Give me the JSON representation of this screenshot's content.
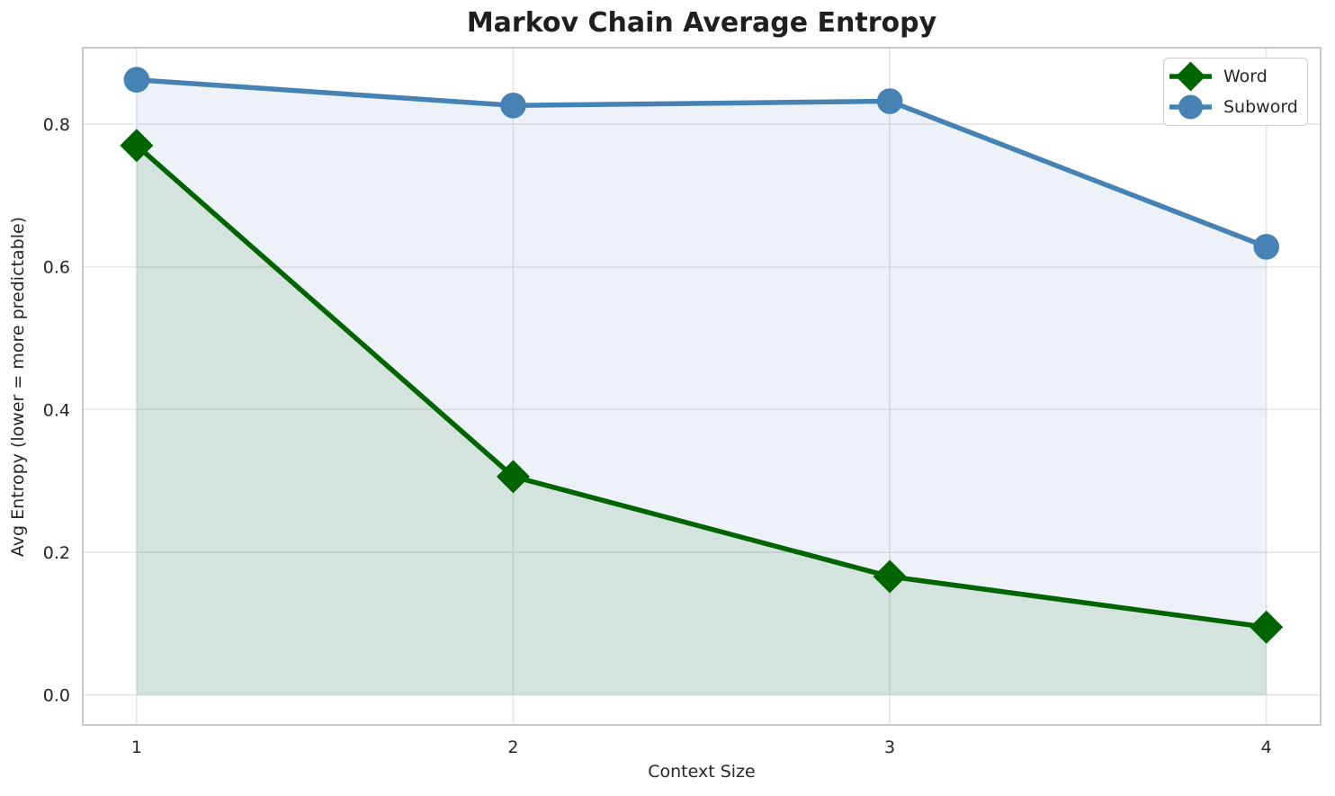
{
  "figure": {
    "background": "#ffffff"
  },
  "chart_data": {
    "type": "line",
    "title": "Markov Chain Average Entropy",
    "xlabel": "Context Size",
    "ylabel": "Avg Entropy (lower = more predictable)",
    "x": [
      1,
      2,
      3,
      4
    ],
    "series": [
      {
        "name": "Word",
        "values": [
          0.77,
          0.306,
          0.166,
          0.095
        ],
        "color": "#006400",
        "marker": "diamond",
        "line_width": 5.5,
        "marker_size": 18.5,
        "fill_to_zero": true,
        "fill_opacity": 0.1
      },
      {
        "name": "Subword",
        "values": [
          0.862,
          0.826,
          0.832,
          0.628
        ],
        "color": "#4682b4",
        "marker": "circle",
        "line_width": 5.5,
        "marker_size": 14.3,
        "fill_to_zero": true,
        "fill_opacity": 0.1
      }
    ],
    "xlim": [
      0.857,
      4.144
    ],
    "ylim": [
      -0.042,
      0.907
    ],
    "x_ticks": [
      {
        "value": 1,
        "label": "1"
      },
      {
        "value": 2,
        "label": "2"
      },
      {
        "value": 3,
        "label": "3"
      },
      {
        "value": 4,
        "label": "4"
      }
    ],
    "y_ticks": [
      {
        "value": 0.0,
        "label": "0.0"
      },
      {
        "value": 0.2,
        "label": "0.2"
      },
      {
        "value": 0.4,
        "label": "0.4"
      },
      {
        "value": 0.6,
        "label": "0.6"
      },
      {
        "value": 0.8,
        "label": "0.8"
      }
    ],
    "grid": true,
    "grid_color": "#e7e7e7",
    "spine_color": "#c9c9c9",
    "text_color": "#262626",
    "fill_baseline": 0,
    "legend": {
      "position": "top-right",
      "items": [
        "Word",
        "Subword"
      ]
    }
  }
}
